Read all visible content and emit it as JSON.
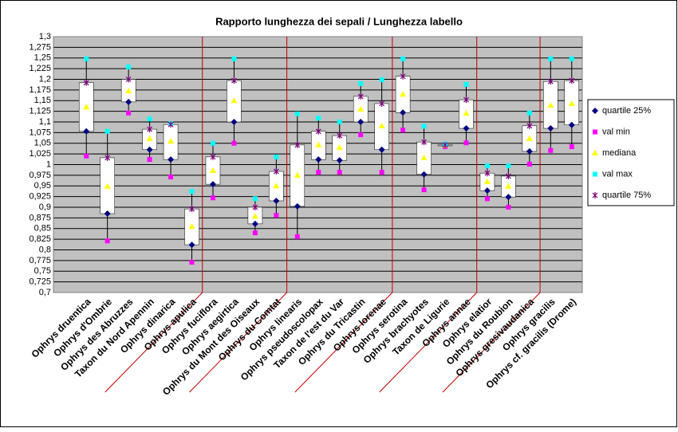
{
  "chart_data": {
    "type": "box",
    "title": "Rapporto lunghezza dei sepali / Lunghezza labello",
    "categories": [
      "Ophrys druentica",
      "Ophrys d'Ombrie",
      "Ophrys des Abruzzes",
      "Taxon du Nord Apennin",
      "Ophrys dinarica",
      "Ophrys apulica",
      "Ophrys fuciflora",
      "Ophrys aegirtica",
      "Ophrys du Mont des Oiseaux",
      "Ophrys du Comtat",
      "Ophrys linearis",
      "Ophrys pseudoscolopax",
      "Taxon de l'est du Var",
      "Ophrys du Tricastin",
      "Ophrys lorenae",
      "Ophrys serotina",
      "Ophrys brachyotes",
      "Taxon de Ligurie",
      "Ophrys annae",
      "Ophrys elatior",
      "Ophrys du Roubion",
      "Ophrys gresivaudanica",
      "Ophrys gracilis",
      "Ophrys cf. gracilis (Drome)"
    ],
    "series": [
      {
        "name": "quartile 25%",
        "color": "#000080",
        "marker": "diamond",
        "values": [
          1.078,
          0.885,
          1.147,
          1.035,
          1.012,
          0.812,
          0.954,
          1.1,
          0.861,
          0.915,
          0.902,
          1.012,
          1.01,
          1.1,
          1.035,
          1.122,
          0.977,
          1.044,
          1.085,
          0.939,
          0.924,
          1.031,
          1.085,
          1.093
        ]
      },
      {
        "name": "val min",
        "color": "#ff00ff",
        "marker": "square",
        "values": [
          1.02,
          0.821,
          1.121,
          1.012,
          0.971,
          0.771,
          0.922,
          1.05,
          0.84,
          0.881,
          0.831,
          0.982,
          0.982,
          1.07,
          0.982,
          1.081,
          0.941,
          1.042,
          1.051,
          0.92,
          0.9,
          1.001,
          1.033,
          1.042
        ]
      },
      {
        "name": "mediana",
        "color": "#ffff00",
        "marker": "triangle",
        "values": [
          1.135,
          0.949,
          1.173,
          1.061,
          1.055,
          0.855,
          0.986,
          1.15,
          0.879,
          0.95,
          0.975,
          1.046,
          1.04,
          1.13,
          1.091,
          1.165,
          1.016,
          1.045,
          1.12,
          0.96,
          0.949,
          1.061,
          1.139,
          1.143
        ]
      },
      {
        "name": "val max",
        "color": "#00ffff",
        "marker": "square",
        "values": [
          1.248,
          1.078,
          1.229,
          1.107,
          1.096,
          0.937,
          1.05,
          1.248,
          0.92,
          1.018,
          1.119,
          1.109,
          1.1,
          1.19,
          1.199,
          1.248,
          1.09,
          1.048,
          1.188,
          0.997,
          0.997,
          1.121,
          1.248,
          1.248
        ]
      },
      {
        "name": "quartile 75%",
        "color": "#800080",
        "marker": "asterisk",
        "values": [
          1.192,
          1.016,
          1.2,
          1.083,
          1.094,
          0.896,
          1.018,
          1.197,
          0.9,
          0.984,
          1.046,
          1.078,
          1.068,
          1.16,
          1.143,
          1.207,
          1.053,
          1.046,
          1.152,
          0.98,
          0.973,
          1.091,
          1.195,
          1.197
        ]
      }
    ],
    "ylim": [
      0.7,
      1.3
    ],
    "yticks": [
      {
        "value": 1.3,
        "label": "1,3"
      },
      {
        "value": 1.275,
        "label": "1,275"
      },
      {
        "value": 1.25,
        "label": "1,25"
      },
      {
        "value": 1.225,
        "label": "1,225"
      },
      {
        "value": 1.2,
        "label": "1,2"
      },
      {
        "value": 1.175,
        "label": "1,175"
      },
      {
        "value": 1.15,
        "label": "1,15"
      },
      {
        "value": 1.125,
        "label": "1,125"
      },
      {
        "value": 1.1,
        "label": "1,1"
      },
      {
        "value": 1.075,
        "label": "1,075"
      },
      {
        "value": 1.05,
        "label": "1,05"
      },
      {
        "value": 1.025,
        "label": "1,025"
      },
      1,
      {
        "value": 0.975,
        "label": "0,975"
      },
      {
        "value": 0.95,
        "label": "0,95"
      },
      {
        "value": 0.925,
        "label": "0,925"
      },
      {
        "value": 0.9,
        "label": "0,9"
      },
      {
        "value": 0.875,
        "label": "0,875"
      },
      {
        "value": 0.85,
        "label": "0,85"
      },
      {
        "value": 0.825,
        "label": "0,825"
      },
      {
        "value": 0.8,
        "label": "0,8"
      },
      {
        "value": 0.775,
        "label": "0,775"
      },
      {
        "value": 0.75,
        "label": "0,75"
      },
      {
        "value": 0.725,
        "label": "0,725"
      },
      {
        "value": 0.7,
        "label": "0,7"
      }
    ],
    "grid": true,
    "legend": "right"
  }
}
